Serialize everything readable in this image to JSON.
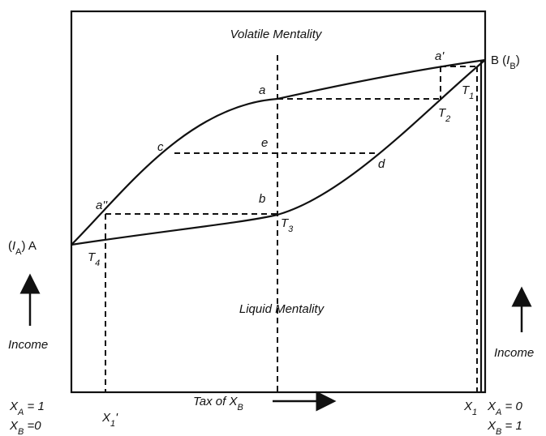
{
  "regions": {
    "volatile": "Volatile Mentality",
    "liquid": "Liquid Mentality"
  },
  "points": {
    "a": "a",
    "a_prime": "a'",
    "a_dprime": "a''",
    "b": "b",
    "c": "c",
    "d": "d",
    "e": "e"
  },
  "tangents": [
    [
      "T",
      "1"
    ],
    [
      "T",
      "2"
    ],
    [
      "T",
      "3"
    ],
    [
      "T",
      "4"
    ]
  ],
  "end_b": [
    "B (",
    "I",
    "B",
    ")"
  ],
  "end_a": [
    "(",
    "I",
    "A",
    ") A"
  ],
  "income_left": "Income",
  "income_right": "Income",
  "left_xa": [
    "X",
    "A",
    " = 1"
  ],
  "left_xb": [
    "X",
    "B",
    " =0"
  ],
  "x1_prime": [
    "X",
    "1",
    "'"
  ],
  "tax": [
    "Tax of X",
    "B"
  ],
  "x1": [
    "X",
    "1"
  ],
  "right_xa": [
    "X",
    "A",
    " = 0"
  ],
  "right_xb": [
    "X",
    "B",
    " = 1"
  ]
}
